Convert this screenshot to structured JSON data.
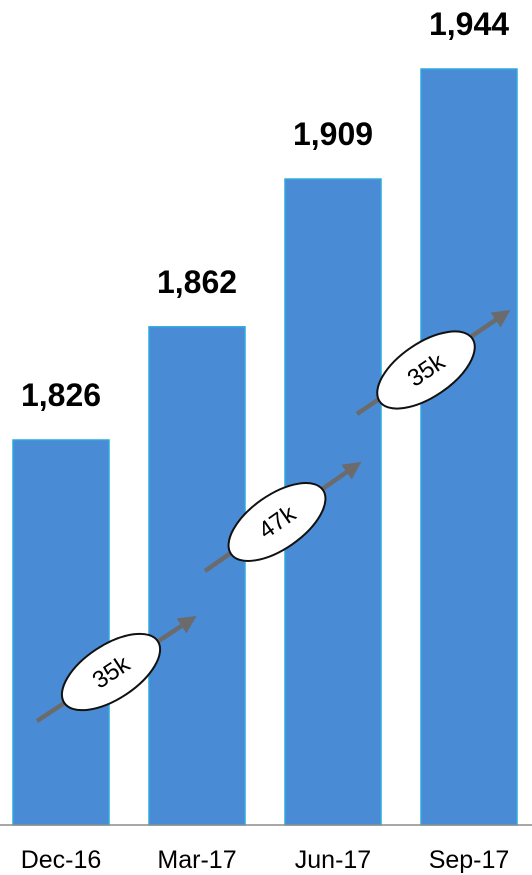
{
  "chart_data": {
    "type": "bar",
    "title": "",
    "xlabel": "",
    "ylabel": "",
    "categories": [
      "Dec-16",
      "Mar-17",
      "Jun-17",
      "Sep-17"
    ],
    "values": [
      1826,
      1862,
      1909,
      1944
    ],
    "value_labels": [
      "1,826",
      "1,862",
      "1,909",
      "1,944"
    ],
    "bar_color": "#4a8bd6",
    "bar_edge_color": "#2fa8dc",
    "grid": false,
    "growth_annotations": [
      {
        "from": "Dec-16",
        "to": "Mar-17",
        "label": "35k"
      },
      {
        "from": "Mar-17",
        "to": "Jun-17",
        "label": "47k"
      },
      {
        "from": "Jun-17",
        "to": "Sep-17",
        "label": "35k"
      }
    ],
    "arrow_color": "#6b6b6b"
  }
}
